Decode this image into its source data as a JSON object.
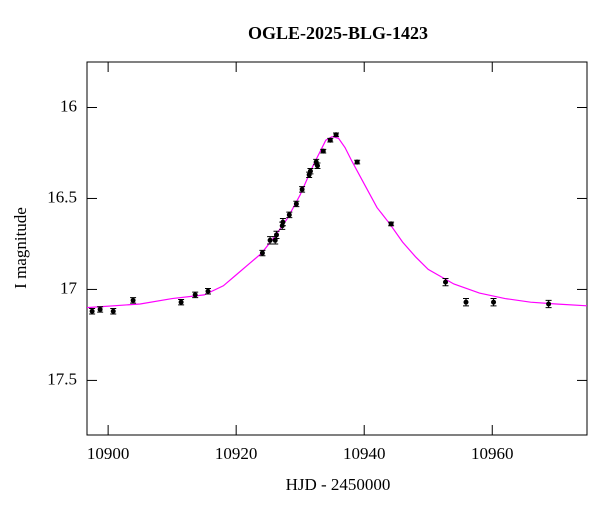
{
  "chart_data": {
    "type": "scatter",
    "title": "OGLE-2025-BLG-1423",
    "x_label": "HJD - 2450000",
    "y_label": "I magnitude",
    "xlim": [
      10896.7,
      10974.8
    ],
    "ylim": [
      15.75,
      17.8
    ],
    "y_inverted": true,
    "xticks": [
      10900,
      10920,
      10940,
      10960
    ],
    "yticks": [
      16,
      16.5,
      17,
      17.5
    ],
    "series": [
      {
        "type": "errorbar",
        "color": "#000000",
        "x": [
          10897.5,
          10898.75,
          10900.8,
          10903.9,
          10911.4,
          10913.6,
          10915.6,
          10924.1,
          10925.3,
          10926.1,
          10926.3,
          10927.2,
          10927.3,
          10928.3,
          10929.4,
          10930.3,
          10931.4,
          10931.6,
          10932.5,
          10932.7,
          10933.6,
          10934.7,
          10935.6,
          10938.9,
          10944.2,
          10952.7,
          10955.9,
          10960.2,
          10968.8
        ],
        "values": [
          17.12,
          17.11,
          17.12,
          17.06,
          17.07,
          17.03,
          17.01,
          16.8,
          16.73,
          16.73,
          16.7,
          16.65,
          16.63,
          16.59,
          16.53,
          16.45,
          16.37,
          16.35,
          16.3,
          16.32,
          16.24,
          16.18,
          16.15,
          16.3,
          16.64,
          16.96,
          17.07,
          17.07,
          17.08
        ],
        "errors": [
          0.015,
          0.015,
          0.015,
          0.015,
          0.015,
          0.015,
          0.015,
          0.015,
          0.02,
          0.02,
          0.02,
          0.02,
          0.02,
          0.015,
          0.015,
          0.015,
          0.015,
          0.015,
          0.015,
          0.015,
          0.01,
          0.01,
          0.01,
          0.01,
          0.01,
          0.02,
          0.02,
          0.02,
          0.02
        ]
      },
      {
        "type": "line",
        "color": "#ff00ff",
        "x": [
          10896.7,
          10905,
          10910,
          10915,
          10918,
          10920,
          10922,
          10924,
          10926,
          10928,
          10930,
          10932,
          10933,
          10934,
          10935,
          10936,
          10937,
          10938,
          10940,
          10942,
          10944,
          10946,
          10948,
          10950,
          10954,
          10958,
          10962,
          10966,
          10970,
          10974.8
        ],
        "values": [
          17.1,
          17.08,
          17.05,
          17.03,
          16.98,
          16.92,
          16.86,
          16.8,
          16.71,
          16.61,
          16.48,
          16.32,
          16.25,
          16.18,
          16.16,
          16.17,
          16.22,
          16.29,
          16.42,
          16.55,
          16.64,
          16.74,
          16.82,
          16.89,
          16.97,
          17.02,
          17.05,
          17.07,
          17.08,
          17.09
        ]
      }
    ]
  }
}
